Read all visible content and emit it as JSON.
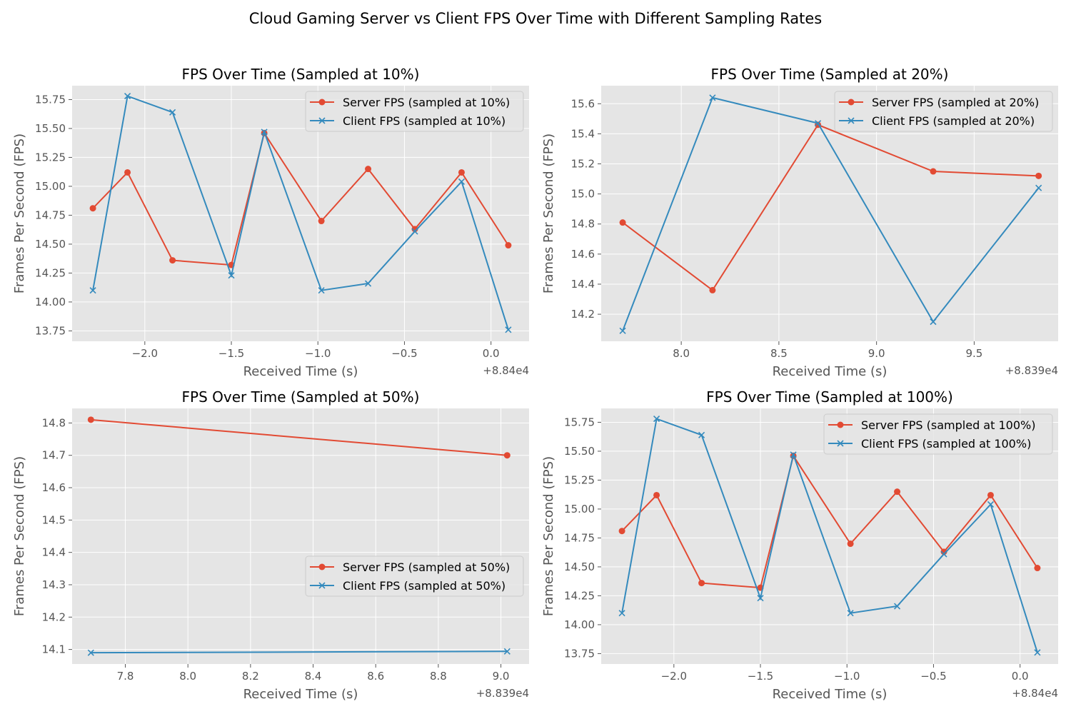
{
  "figure": {
    "title": "Cloud Gaming Server vs Client FPS Over Time with Different Sampling Rates"
  },
  "colors": {
    "server": "#E24A33",
    "client": "#348ABD",
    "panel_bg": "#E5E5E5",
    "grid": "#FFFFFF",
    "tick_text": "#555555",
    "label_text": "#555555"
  },
  "chart_data": [
    {
      "type": "line",
      "title": "FPS Over Time (Sampled at 10%)",
      "xlabel": "Received Time (s)",
      "ylabel": "Frames Per Second (FPS)",
      "x_offset_label": "+8.84e4",
      "xlim": [
        -2.42,
        0.22
      ],
      "ylim": [
        13.66,
        15.87
      ],
      "xticks": [
        -2.0,
        -1.5,
        -1.0,
        -0.5,
        0.0
      ],
      "xtick_labels": [
        "−2.0",
        "−1.5",
        "−1.0",
        "−0.5",
        "0.0"
      ],
      "yticks": [
        13.75,
        14.0,
        14.25,
        14.5,
        14.75,
        15.0,
        15.25,
        15.5,
        15.75
      ],
      "ytick_labels": [
        "13.75",
        "14.00",
        "14.25",
        "14.50",
        "14.75",
        "15.00",
        "15.25",
        "15.50",
        "15.75"
      ],
      "grid": true,
      "legend_position": "top-right",
      "series": [
        {
          "name": "Server FPS (sampled at 10%)",
          "marker": "circle",
          "x": [
            -2.3,
            -2.1,
            -1.84,
            -1.5,
            -1.31,
            -0.98,
            -0.71,
            -0.44,
            -0.17,
            0.1
          ],
          "y": [
            14.81,
            15.12,
            14.36,
            14.32,
            15.46,
            14.7,
            15.15,
            14.63,
            15.12,
            14.49
          ]
        },
        {
          "name": "Client FPS (sampled at 10%)",
          "marker": "x",
          "x": [
            -2.3,
            -2.1,
            -1.84,
            -1.5,
            -1.31,
            -0.98,
            -0.71,
            -0.44,
            -0.17,
            0.1
          ],
          "y": [
            14.1,
            15.78,
            15.64,
            14.23,
            15.47,
            14.1,
            14.16,
            14.61,
            15.04,
            13.76
          ]
        }
      ]
    },
    {
      "type": "line",
      "title": "FPS Over Time (Sampled at 20%)",
      "xlabel": "Received Time (s)",
      "ylabel": "Frames Per Second (FPS)",
      "x_offset_label": "+8.839e4",
      "xlim": [
        7.59,
        9.93
      ],
      "ylim": [
        14.02,
        15.72
      ],
      "xticks": [
        8.0,
        8.5,
        9.0,
        9.5
      ],
      "xtick_labels": [
        "8.0",
        "8.5",
        "9.0",
        "9.5"
      ],
      "yticks": [
        14.2,
        14.4,
        14.6,
        14.8,
        15.0,
        15.2,
        15.4,
        15.6
      ],
      "ytick_labels": [
        "14.2",
        "14.4",
        "14.6",
        "14.8",
        "15.0",
        "15.2",
        "15.4",
        "15.6"
      ],
      "grid": true,
      "legend_position": "top-right",
      "series": [
        {
          "name": "Server FPS (sampled at 20%)",
          "marker": "circle",
          "x": [
            7.7,
            8.16,
            8.7,
            9.29,
            9.83
          ],
          "y": [
            14.81,
            14.36,
            15.46,
            15.15,
            15.12
          ]
        },
        {
          "name": "Client FPS (sampled at 20%)",
          "marker": "x",
          "x": [
            7.7,
            8.16,
            8.7,
            9.29,
            9.83
          ],
          "y": [
            14.09,
            15.64,
            15.47,
            14.15,
            15.04
          ]
        }
      ]
    },
    {
      "type": "line",
      "title": "FPS Over Time (Sampled at 50%)",
      "xlabel": "Received Time (s)",
      "ylabel": "Frames Per Second (FPS)",
      "x_offset_label": "+8.839e4",
      "xlim": [
        7.63,
        9.09
      ],
      "ylim": [
        14.055,
        14.845
      ],
      "xticks": [
        7.8,
        8.0,
        8.2,
        8.4,
        8.6,
        8.8,
        9.0
      ],
      "xtick_labels": [
        "7.8",
        "8.0",
        "8.2",
        "8.4",
        "8.6",
        "8.8",
        "9.0"
      ],
      "yticks": [
        14.1,
        14.2,
        14.3,
        14.4,
        14.5,
        14.6,
        14.7,
        14.8
      ],
      "ytick_labels": [
        "14.1",
        "14.2",
        "14.3",
        "14.4",
        "14.5",
        "14.6",
        "14.7",
        "14.8"
      ],
      "grid": true,
      "legend_position": "center-right",
      "series": [
        {
          "name": "Server FPS (sampled at 50%)",
          "marker": "circle",
          "x": [
            7.69,
            9.02
          ],
          "y": [
            14.81,
            14.7
          ]
        },
        {
          "name": "Client FPS (sampled at 50%)",
          "marker": "x",
          "x": [
            7.69,
            9.02
          ],
          "y": [
            14.09,
            14.094
          ]
        }
      ]
    },
    {
      "type": "line",
      "title": "FPS Over Time (Sampled at 100%)",
      "xlabel": "Received Time (s)",
      "ylabel": "Frames Per Second (FPS)",
      "x_offset_label": "+8.84e4",
      "xlim": [
        -2.42,
        0.22
      ],
      "ylim": [
        13.66,
        15.87
      ],
      "xticks": [
        -2.0,
        -1.5,
        -1.0,
        -0.5,
        0.0
      ],
      "xtick_labels": [
        "−2.0",
        "−1.5",
        "−1.0",
        "−0.5",
        "0.0"
      ],
      "yticks": [
        13.75,
        14.0,
        14.25,
        14.5,
        14.75,
        15.0,
        15.25,
        15.5,
        15.75
      ],
      "ytick_labels": [
        "13.75",
        "14.00",
        "14.25",
        "14.50",
        "14.75",
        "15.00",
        "15.25",
        "15.50",
        "15.75"
      ],
      "grid": true,
      "legend_position": "top-right",
      "series": [
        {
          "name": "Server FPS (sampled at 100%)",
          "marker": "circle",
          "x": [
            -2.3,
            -2.1,
            -1.84,
            -1.5,
            -1.31,
            -0.98,
            -0.71,
            -0.44,
            -0.17,
            0.1
          ],
          "y": [
            14.81,
            15.12,
            14.36,
            14.32,
            15.46,
            14.7,
            15.15,
            14.63,
            15.12,
            14.49
          ]
        },
        {
          "name": "Client FPS (sampled at 100%)",
          "marker": "x",
          "x": [
            -2.3,
            -2.1,
            -1.84,
            -1.5,
            -1.31,
            -0.98,
            -0.71,
            -0.44,
            -0.17,
            0.1
          ],
          "y": [
            14.1,
            15.78,
            15.64,
            14.23,
            15.47,
            14.1,
            14.16,
            14.61,
            15.04,
            13.76
          ]
        }
      ]
    }
  ]
}
